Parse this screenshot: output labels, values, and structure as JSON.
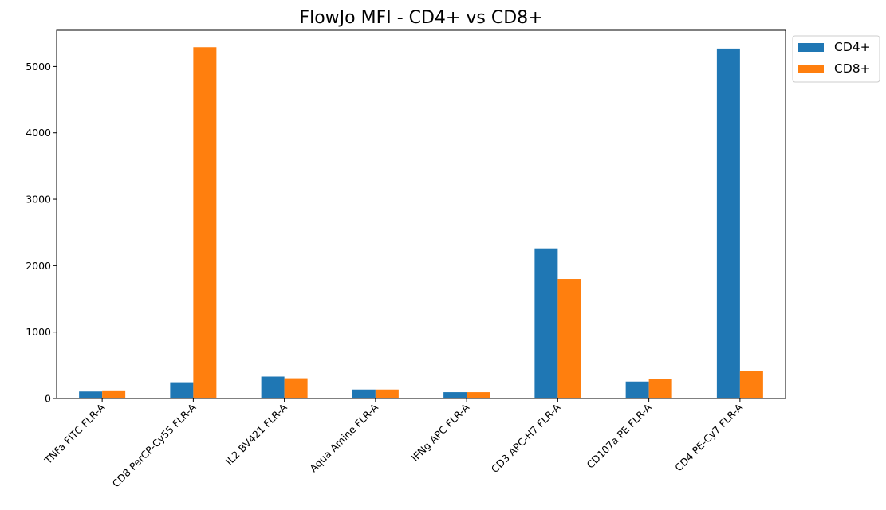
{
  "chart_data": {
    "type": "bar",
    "title": "FlowJo MFI - CD4+ vs CD8+",
    "xlabel": "",
    "ylabel": "",
    "categories": [
      "TNFa FITC FLR-A",
      "CD8 PerCP-Cy55 FLR-A",
      "IL2 BV421 FLR-A",
      "Aqua Amine FLR-A",
      "IFNg APC FLR-A",
      "CD3 APC-H7 FLR-A",
      "CD107a PE FLR-A",
      "CD4 PE-Cy7 FLR-A"
    ],
    "series": [
      {
        "name": "CD4+",
        "color": "#1f77b4",
        "values": [
          105,
          245,
          330,
          135,
          95,
          2260,
          255,
          5270
        ]
      },
      {
        "name": "CD8+",
        "color": "#ff7f0e",
        "values": [
          110,
          5290,
          305,
          135,
          95,
          1800,
          290,
          410
        ]
      }
    ],
    "ylim": [
      0,
      5545
    ],
    "yticks": [
      0,
      1000,
      2000,
      3000,
      4000,
      5000
    ],
    "grid": false,
    "legend_position": "outside-top-right"
  }
}
